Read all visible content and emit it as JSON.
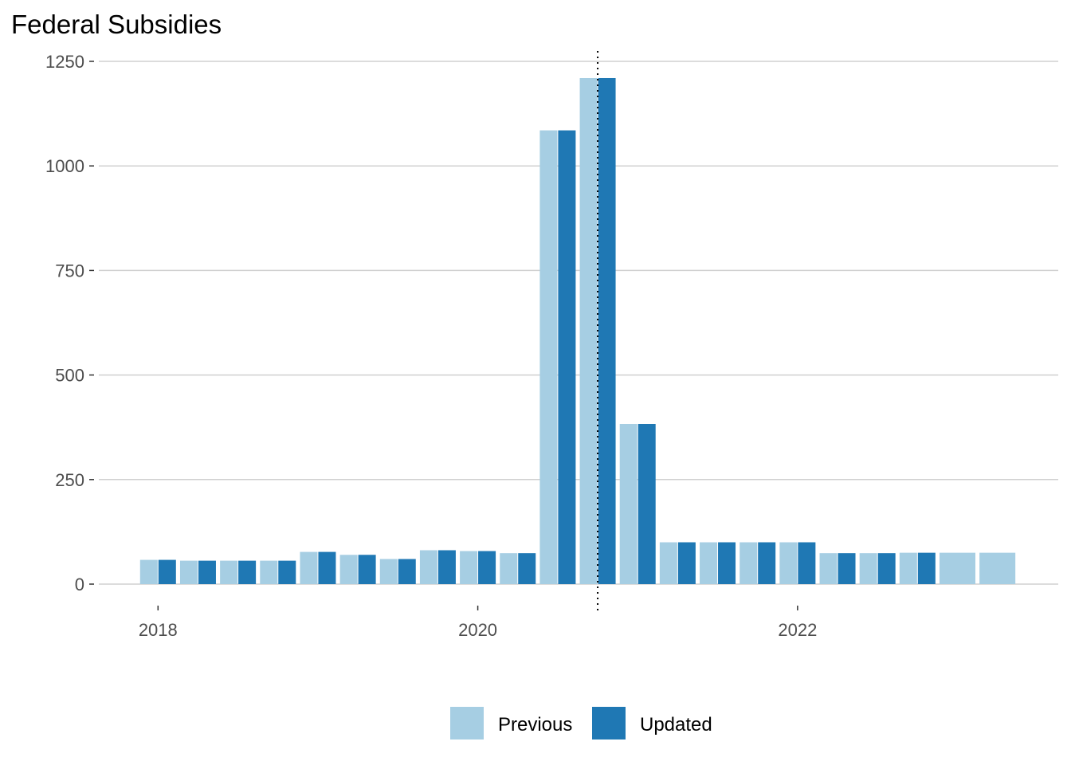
{
  "chart_data": {
    "type": "bar",
    "title": "Federal Subsidies",
    "xlabel": "",
    "ylabel": "",
    "ylim": [
      0,
      1250
    ],
    "yticks": [
      0,
      250,
      500,
      750,
      1000,
      1250
    ],
    "xticks": [
      "2018",
      "2020",
      "2022"
    ],
    "grid": "horizontal",
    "legend_position": "bottom",
    "reference_line": {
      "x": "2020-Q4",
      "style": "dotted"
    },
    "categories": [
      "2018-Q1",
      "2018-Q2",
      "2018-Q3",
      "2018-Q4",
      "2019-Q1",
      "2019-Q2",
      "2019-Q3",
      "2019-Q4",
      "2020-Q1",
      "2020-Q2",
      "2020-Q3",
      "2020-Q4",
      "2021-Q1",
      "2021-Q2",
      "2021-Q3",
      "2021-Q4",
      "2022-Q1",
      "2022-Q2",
      "2022-Q3",
      "2022-Q4",
      "2023-Q1",
      "2023-Q2"
    ],
    "series": [
      {
        "name": "Previous",
        "color": "#a6cee3",
        "values": [
          58,
          56,
          56,
          56,
          77,
          70,
          60,
          81,
          79,
          74,
          1085,
          1210,
          383,
          100,
          100,
          100,
          100,
          74,
          74,
          75,
          75,
          75
        ]
      },
      {
        "name": "Updated",
        "color": "#1f78b4",
        "values": [
          58,
          56,
          56,
          56,
          77,
          70,
          60,
          81,
          79,
          74,
          1085,
          1210,
          383,
          100,
          100,
          100,
          100,
          74,
          74,
          75,
          null,
          null
        ]
      }
    ]
  }
}
